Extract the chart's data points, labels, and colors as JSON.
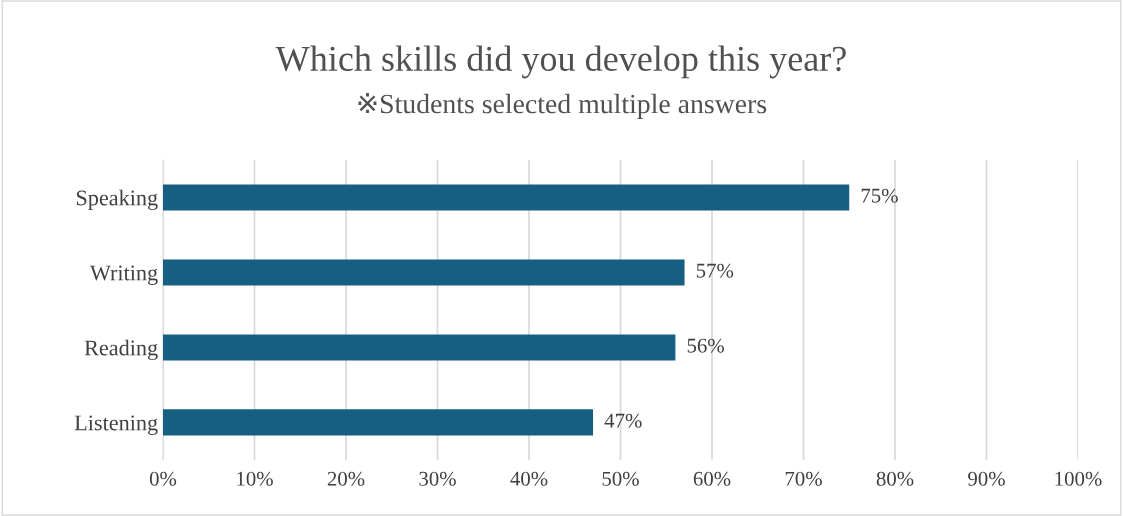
{
  "chart_data": {
    "type": "bar",
    "orientation": "horizontal",
    "title": "Which skills did you develop this year?",
    "subtitle": "※Students selected multiple answers",
    "categories": [
      "Speaking",
      "Writing",
      "Reading",
      "Listening"
    ],
    "values": [
      75,
      57,
      56,
      47
    ],
    "color": "#175f82",
    "value_labels": [
      "75%",
      "57%",
      "56%",
      "47%"
    ],
    "xlim": [
      0,
      100
    ],
    "xticks": [
      {
        "value": 0,
        "label": "0%"
      },
      {
        "value": 10,
        "label": "10%"
      },
      {
        "value": 20,
        "label": "20%"
      },
      {
        "value": 30,
        "label": "30%"
      },
      {
        "value": 40,
        "label": "40%"
      },
      {
        "value": 50,
        "label": "50%"
      },
      {
        "value": 60,
        "label": "60%"
      },
      {
        "value": 70,
        "label": "70%"
      },
      {
        "value": 80,
        "label": "80%"
      },
      {
        "value": 90,
        "label": "90%"
      },
      {
        "value": 100,
        "label": "100%"
      }
    ],
    "grid": "x",
    "legend": false
  }
}
